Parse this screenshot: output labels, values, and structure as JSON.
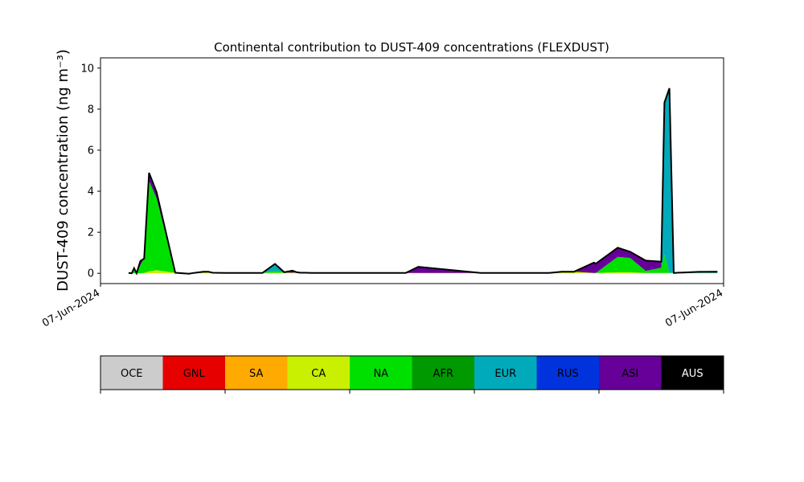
{
  "chart_data": {
    "type": "area",
    "title": "Continental contribution to DUST-409 concentrations (FLEXDUST)",
    "ylabel": "DUST-409 concentration (ng m⁻³)",
    "xlabel": "",
    "x_tick_labels": [
      "07-Jun-2024",
      "07-Jun-2024"
    ],
    "y_ticks": [
      0,
      2,
      4,
      6,
      8,
      10
    ],
    "ylim": [
      -0.5,
      10.5
    ],
    "xlim": [
      0,
      1
    ],
    "stacked": true,
    "x": [
      0.045,
      0.05,
      0.054,
      0.058,
      0.064,
      0.07,
      0.078,
      0.09,
      0.12,
      0.142,
      0.15,
      0.165,
      0.173,
      0.18,
      0.2,
      0.26,
      0.28,
      0.295,
      0.308,
      0.315,
      0.321,
      0.328,
      0.338,
      0.36,
      0.415,
      0.472,
      0.49,
      0.51,
      0.61,
      0.63,
      0.65,
      0.6785,
      0.69,
      0.7,
      0.71,
      0.72,
      0.74,
      0.76,
      0.792,
      0.795,
      0.83,
      0.85,
      0.875,
      0.9,
      0.905,
      0.913,
      0.92,
      0.92,
      0.9225,
      0.925,
      0.935,
      0.96,
      0.99
    ],
    "series": [
      {
        "name": "OCE",
        "color": "#cccccc",
        "values": [
          0,
          0,
          0,
          0,
          0,
          0,
          0,
          0,
          0,
          0,
          0,
          0,
          0,
          0,
          0,
          0,
          0,
          0,
          0,
          0,
          0,
          0,
          0,
          0,
          0,
          0,
          0,
          0,
          0,
          0,
          0,
          0,
          0,
          0,
          0,
          0,
          0,
          0,
          0,
          0,
          0,
          0,
          0,
          0,
          0,
          0,
          0,
          0,
          0,
          0,
          0,
          0,
          0
        ]
      },
      {
        "name": "GNL",
        "color": "#e60000",
        "values": [
          0,
          0,
          0,
          0,
          0,
          0,
          0,
          0,
          0,
          0,
          0,
          0,
          0,
          0,
          0,
          0,
          0,
          0,
          0,
          0,
          0,
          0,
          0,
          0,
          0,
          0,
          0,
          0,
          0,
          0,
          0,
          0,
          0,
          0,
          0,
          0,
          0,
          0,
          0,
          0,
          0,
          0,
          0,
          0,
          0,
          0,
          0,
          0,
          0,
          0,
          0,
          0,
          0
        ]
      },
      {
        "name": "SA",
        "color": "#ffaa00",
        "values": [
          0,
          0,
          0,
          0,
          0,
          0,
          0,
          0,
          0,
          0,
          0,
          0,
          0,
          0,
          0,
          0,
          0,
          0,
          0,
          0,
          0,
          0,
          0,
          0,
          0,
          0,
          0,
          0,
          0,
          0,
          0,
          0,
          0,
          0,
          0,
          0,
          0,
          0,
          0,
          0,
          0,
          0,
          0,
          0,
          0,
          0,
          0,
          0,
          0,
          0,
          0,
          0,
          0
        ]
      },
      {
        "name": "CA",
        "color": "#c8f000",
        "values": [
          0,
          0,
          0,
          0,
          0,
          0.02,
          0.1,
          0.15,
          0.03,
          0.02,
          0.02,
          0.03,
          0.05,
          0.02,
          0.02,
          0.02,
          0.03,
          0.03,
          0.03,
          0.03,
          0.03,
          0.03,
          0.02,
          0.02,
          0.02,
          0.02,
          0.02,
          0.02,
          0.02,
          0.02,
          0.02,
          0.02,
          0.02,
          0.02,
          0.02,
          0.02,
          0.08,
          0.08,
          0.02,
          0.02,
          0.05,
          0.05,
          0.02,
          0.02,
          0.02,
          0.02,
          0.02,
          0.02,
          0.02,
          0.02,
          0.02,
          0.02,
          0.02
        ]
      },
      {
        "name": "NA",
        "color": "#00e000",
        "values": [
          0.02,
          0,
          0.25,
          0,
          0.4,
          0.7,
          4.4,
          3.5,
          0,
          -0.04,
          0,
          0.05,
          0.03,
          0.01,
          0,
          0,
          0.1,
          0,
          0,
          0,
          0,
          0,
          0,
          0,
          0,
          0,
          0,
          0,
          0,
          0,
          0,
          0,
          0,
          0,
          0,
          0,
          0,
          0,
          0,
          0,
          0.75,
          0.7,
          0.1,
          0.25,
          0.9,
          0,
          0,
          0,
          0,
          0,
          0,
          0,
          0
        ]
      },
      {
        "name": "AFR",
        "color": "#009900",
        "values": [
          0,
          0,
          0,
          0,
          0,
          0,
          0,
          0,
          0,
          0,
          0,
          0,
          0,
          0,
          0,
          0,
          0,
          0,
          0,
          0,
          0,
          0,
          0,
          0,
          0,
          0,
          0,
          0,
          0,
          0,
          0,
          0,
          0,
          0,
          0,
          0,
          0,
          0,
          0,
          0,
          0,
          0,
          0,
          0,
          0,
          0,
          0,
          0,
          0,
          0,
          0,
          0,
          0
        ]
      },
      {
        "name": "EUR",
        "color": "#00aabb",
        "values": [
          0,
          0,
          0,
          0,
          0,
          0,
          0,
          0,
          0,
          0,
          0,
          0,
          0,
          0,
          0,
          0,
          0.3,
          0.01,
          0,
          0.02,
          0,
          0,
          0,
          0,
          0,
          0,
          0,
          0,
          0,
          0,
          0,
          0,
          0,
          0,
          0,
          0,
          0,
          0,
          0,
          0,
          0,
          0,
          0,
          0,
          7.2,
          9.0,
          0,
          0,
          0,
          0.01,
          0.02,
          0.03,
          0.03
        ]
      },
      {
        "name": "RUS",
        "color": "#0033dd",
        "values": [
          0,
          0,
          0,
          0,
          0,
          0,
          0,
          0,
          0,
          0,
          0,
          0,
          0,
          0,
          0,
          0,
          0,
          0,
          0,
          0,
          0,
          0,
          0,
          0,
          0,
          0,
          0,
          0,
          0,
          0,
          0,
          0,
          0,
          0,
          0,
          0,
          0,
          0,
          0,
          0,
          0,
          0,
          0,
          0,
          0,
          0,
          0,
          0,
          0,
          0,
          0,
          0,
          0
        ]
      },
      {
        "name": "ASI",
        "color": "#660099",
        "values": [
          0,
          0,
          0,
          0,
          0.2,
          0,
          0.4,
          0.3,
          0,
          0,
          0,
          0,
          0,
          0,
          0,
          0,
          0.03,
          0.01,
          0.1,
          0,
          0,
          0,
          0,
          0,
          0,
          0,
          0,
          0.3,
          0,
          0,
          0,
          0,
          0,
          0,
          0,
          0,
          0,
          0,
          0.5,
          0.45,
          0.45,
          0.3,
          0.5,
          0.3,
          0.2,
          0,
          0,
          0,
          0,
          0,
          0,
          0.02,
          0.03
        ]
      },
      {
        "name": "AUS",
        "color": "#000000",
        "values": [
          0,
          0,
          0,
          0,
          0,
          0,
          0,
          0,
          0,
          0,
          0,
          0,
          0,
          0,
          0,
          0,
          0,
          0,
          0,
          0,
          0,
          0,
          0,
          0,
          0,
          0,
          0,
          0,
          0,
          0,
          0,
          0,
          0,
          0,
          0,
          0,
          0,
          0,
          0,
          0,
          0,
          0,
          0,
          0,
          0,
          0,
          0,
          0,
          0,
          0,
          0,
          0,
          0
        ]
      }
    ],
    "legend_placement": "bottom",
    "grid": false
  }
}
